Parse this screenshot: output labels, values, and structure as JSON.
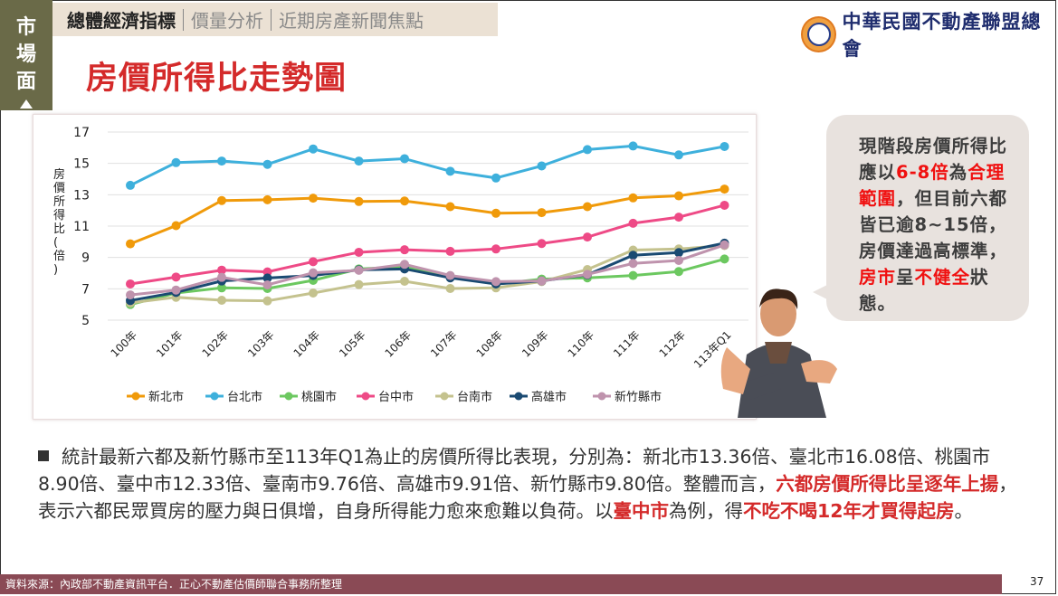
{
  "side_tab": [
    "市",
    "場",
    "面"
  ],
  "nav": {
    "items": [
      "總體經濟指標",
      "價量分析",
      "近期房產新聞焦點"
    ],
    "active_index": 0
  },
  "logo_text": "中華民國不動產聯盟總會",
  "page_title": "房價所得比走勢圖",
  "chart_data": {
    "type": "line",
    "title": "",
    "xlabel": "",
    "ylabel": "房價所得比(倍)",
    "ylim": [
      5,
      17
    ],
    "yticks": [
      5,
      7,
      9,
      11,
      13,
      15,
      17
    ],
    "grid": true,
    "legend_placement": "bottom",
    "categories": [
      "100年",
      "101年",
      "102年",
      "103年",
      "104年",
      "105年",
      "106年",
      "107年",
      "108年",
      "109年",
      "110年",
      "111年",
      "112年",
      "113年Q1"
    ],
    "series": [
      {
        "name": "新北市",
        "color": "#f09a0a",
        "values": [
          9.87,
          11.03,
          12.63,
          12.68,
          12.78,
          12.57,
          12.6,
          12.24,
          11.82,
          11.86,
          12.24,
          12.8,
          12.93,
          13.36
        ]
      },
      {
        "name": "台北市",
        "color": "#3eb0dc",
        "values": [
          13.6,
          15.05,
          15.15,
          14.94,
          15.92,
          15.15,
          15.3,
          14.5,
          14.07,
          14.84,
          15.88,
          16.11,
          15.54,
          16.08
        ]
      },
      {
        "name": "桃園市",
        "color": "#6cc860",
        "values": [
          6.0,
          6.73,
          7.06,
          7.02,
          7.54,
          8.27,
          8.4,
          7.8,
          7.3,
          7.62,
          7.7,
          7.85,
          8.1,
          8.9
        ]
      },
      {
        "name": "台中市",
        "color": "#ee4a86",
        "values": [
          7.31,
          7.75,
          8.19,
          8.08,
          8.73,
          9.33,
          9.49,
          9.39,
          9.54,
          9.89,
          10.3,
          11.18,
          11.57,
          12.33
        ]
      },
      {
        "name": "台南市",
        "color": "#c4c28e",
        "values": [
          6.1,
          6.46,
          6.27,
          6.23,
          6.73,
          7.27,
          7.48,
          7.02,
          7.06,
          7.46,
          8.23,
          9.47,
          9.54,
          9.76
        ]
      },
      {
        "name": "高雄市",
        "color": "#1a4a72",
        "values": [
          6.25,
          6.77,
          7.5,
          7.69,
          7.85,
          8.21,
          8.27,
          7.7,
          7.31,
          7.5,
          7.89,
          9.14,
          9.31,
          9.91
        ]
      },
      {
        "name": "新竹縣市",
        "color": "#bf93ad",
        "values": [
          6.61,
          6.92,
          7.73,
          7.25,
          8.02,
          8.18,
          8.56,
          7.85,
          7.46,
          7.5,
          7.92,
          8.62,
          8.81,
          9.8
        ]
      }
    ]
  },
  "bubble": {
    "segments": [
      {
        "t": "現階段房價所得比應以",
        "red": false
      },
      {
        "t": "6-8倍",
        "red": true
      },
      {
        "t": "為",
        "red": false
      },
      {
        "t": "合理範圍",
        "red": true
      },
      {
        "t": "，但目前六都皆已逾8~15倍，房價達過高標準，",
        "red": false
      },
      {
        "t": "房市",
        "red": true
      },
      {
        "t": "呈",
        "red": false
      },
      {
        "t": "不健全",
        "red": true
      },
      {
        "t": "狀態。",
        "red": false
      }
    ]
  },
  "summary": {
    "segments": [
      {
        "t": "統計最新六都及新竹縣市至113年Q1為止的房價所得比表現，分別為：新北市13.36倍、臺北市16.08倍、桃園市8.90倍、臺中市12.33倍、臺南市9.76倍、高雄市9.91倍、新竹縣市9.80倍。整體而言，",
        "red": false
      },
      {
        "t": "六都房價所得比呈逐年上揚",
        "red": true
      },
      {
        "t": "，表示六都民眾買房的壓力與日俱增，自身所得能力愈來愈難以負荷。以",
        "red": false
      },
      {
        "t": "臺中市",
        "red": true
      },
      {
        "t": "為例，得",
        "red": false
      },
      {
        "t": "不吃不喝12年才買得起房",
        "red": true
      },
      {
        "t": "。",
        "red": false
      }
    ]
  },
  "footer": {
    "source": "資料來源：內政部不動產資訊平台．正心不動產估價師聯合事務所整理",
    "page_number": "37"
  }
}
